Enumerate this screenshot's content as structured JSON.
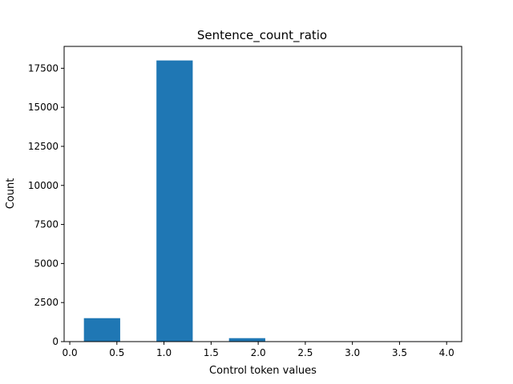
{
  "chart_data": {
    "type": "bar",
    "title": "Sentence_count_ratio",
    "xlabel": "Control token values",
    "ylabel": "Count",
    "xlim": [
      -0.06,
      4.16
    ],
    "ylim": [
      0,
      18900
    ],
    "grid": false,
    "legend": "none",
    "bar_color": "#1f77b4",
    "bins": [
      {
        "x0": 0.15,
        "x1": 0.535,
        "value": 1500
      },
      {
        "x0": 0.535,
        "x1": 0.92,
        "value": 0
      },
      {
        "x0": 0.92,
        "x1": 1.305,
        "value": 18000
      },
      {
        "x0": 1.305,
        "x1": 1.69,
        "value": 0
      },
      {
        "x0": 1.69,
        "x1": 2.075,
        "value": 220
      },
      {
        "x0": 2.075,
        "x1": 2.46,
        "value": 0
      },
      {
        "x0": 2.46,
        "x1": 2.845,
        "value": 0
      },
      {
        "x0": 2.845,
        "x1": 3.23,
        "value": 0
      },
      {
        "x0": 3.23,
        "x1": 3.615,
        "value": 0
      },
      {
        "x0": 3.615,
        "x1": 4.0,
        "value": 5
      }
    ],
    "x_ticks": [
      {
        "value": 0.0,
        "label": "0.0"
      },
      {
        "value": 0.5,
        "label": "0.5"
      },
      {
        "value": 1.0,
        "label": "1.0"
      },
      {
        "value": 1.5,
        "label": "1.5"
      },
      {
        "value": 2.0,
        "label": "2.0"
      },
      {
        "value": 2.5,
        "label": "2.5"
      },
      {
        "value": 3.0,
        "label": "3.0"
      },
      {
        "value": 3.5,
        "label": "3.5"
      },
      {
        "value": 4.0,
        "label": "4.0"
      }
    ],
    "y_ticks": [
      {
        "value": 0,
        "label": "0"
      },
      {
        "value": 2500,
        "label": "2500"
      },
      {
        "value": 5000,
        "label": "5000"
      },
      {
        "value": 7500,
        "label": "7500"
      },
      {
        "value": 10000,
        "label": "10000"
      },
      {
        "value": 12500,
        "label": "12500"
      },
      {
        "value": 15000,
        "label": "15000"
      },
      {
        "value": 17500,
        "label": "17500"
      }
    ]
  }
}
